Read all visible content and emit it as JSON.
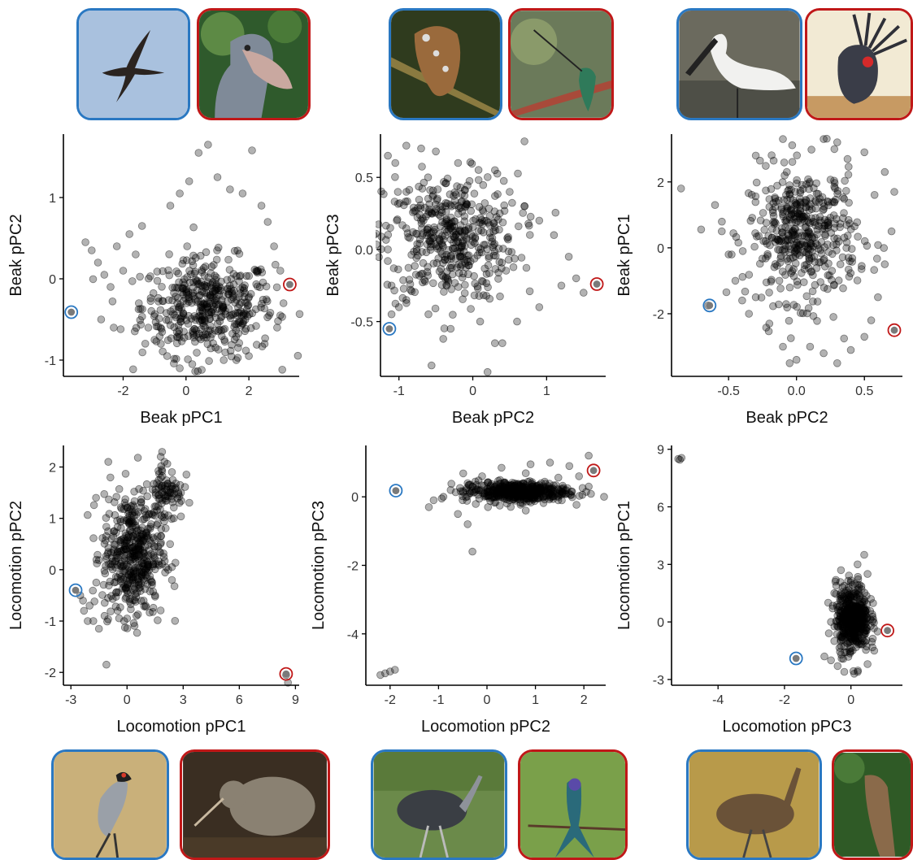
{
  "colors": {
    "low_outlier": "#2a78c2",
    "high_outlier": "#c01818",
    "points": "#000000",
    "axis": "#000000",
    "tick_text": "#333333",
    "label_text": "#111111"
  },
  "photos": {
    "top": [
      {
        "name": "swift-photo",
        "outline": "blue",
        "icon": "bird-in-flight"
      },
      {
        "name": "shoebill-photo",
        "outline": "red",
        "icon": "shoebill"
      },
      {
        "name": "frogmouth-photo",
        "outline": "blue",
        "icon": "perched-bird"
      },
      {
        "name": "sword-billed-hummingbird-photo",
        "outline": "red",
        "icon": "hummingbird"
      },
      {
        "name": "spoonbill-photo",
        "outline": "blue",
        "icon": "spoonbill"
      },
      {
        "name": "palm-cockatoo-photo",
        "outline": "red",
        "icon": "cockatoo"
      }
    ],
    "bottom": [
      {
        "name": "secretarybird-photo",
        "outline": "blue",
        "icon": "secretarybird"
      },
      {
        "name": "kiwi-photo",
        "outline": "red",
        "icon": "kiwi"
      },
      {
        "name": "rhea-photo",
        "outline": "blue",
        "icon": "rhea"
      },
      {
        "name": "hummingbird-photo",
        "outline": "red",
        "icon": "hummingbird"
      },
      {
        "name": "emu-photo",
        "outline": "blue",
        "icon": "emu"
      },
      {
        "name": "perched-bird-photo",
        "outline": "red",
        "icon": "perched-bird"
      }
    ]
  },
  "chart_data": [
    {
      "type": "scatter",
      "xlabel": "Beak pPC1",
      "ylabel": "Beak pPC2",
      "xlim": [
        -3.9,
        3.6
      ],
      "ylim": [
        -1.2,
        1.78
      ],
      "xticks": [
        -2,
        0,
        2
      ],
      "yticks": [
        -1,
        0,
        1
      ],
      "cloud": {
        "cx": 0.7,
        "cy": -0.35,
        "sx": 1.05,
        "sy": 0.3,
        "n": 450
      },
      "scatter_points": [
        [
          -3.0,
          0.35
        ],
        [
          -2.8,
          0.2
        ],
        [
          -2.6,
          0.05
        ],
        [
          -2.4,
          -0.1
        ],
        [
          -2.2,
          0.4
        ],
        [
          -2.0,
          0.1
        ],
        [
          -1.8,
          0.55
        ],
        [
          -1.6,
          0.3
        ],
        [
          -1.4,
          0.65
        ],
        [
          -1.2,
          -0.6
        ],
        [
          -1.0,
          -0.75
        ],
        [
          -0.8,
          -0.8
        ],
        [
          -0.5,
          0.9
        ],
        [
          -0.2,
          1.05
        ],
        [
          0.1,
          1.2
        ],
        [
          0.4,
          1.55
        ],
        [
          0.7,
          1.65
        ],
        [
          1.0,
          1.25
        ],
        [
          1.4,
          1.1
        ],
        [
          1.8,
          1.05
        ],
        [
          2.1,
          1.58
        ],
        [
          2.4,
          0.9
        ],
        [
          2.6,
          0.7
        ],
        [
          2.8,
          0.4
        ],
        [
          3.0,
          0.1
        ],
        [
          3.1,
          -0.3
        ],
        [
          3.0,
          -0.45
        ],
        [
          2.9,
          -0.6
        ],
        [
          2.5,
          -0.8
        ],
        [
          2.0,
          -0.95
        ],
        [
          1.6,
          -1.0
        ],
        [
          0.5,
          -1.12
        ],
        [
          -0.2,
          -1.1
        ],
        [
          0.2,
          -1.05
        ],
        [
          -0.6,
          -0.95
        ],
        [
          -2.7,
          -0.5
        ],
        [
          -2.3,
          -0.6
        ],
        [
          -3.2,
          0.45
        ],
        [
          1.2,
          -1.0
        ],
        [
          -1.5,
          -0.3
        ]
      ],
      "highlights": [
        {
          "outline": "blue",
          "x": -3.65,
          "y": -0.41
        },
        {
          "outline": "red",
          "x": 3.3,
          "y": -0.07
        }
      ]
    },
    {
      "type": "scatter",
      "xlabel": "Beak pPC2",
      "ylabel": "Beak pPC3",
      "xlim": [
        -1.25,
        1.8
      ],
      "ylim": [
        -0.88,
        0.8
      ],
      "xticks": [
        -1,
        0,
        1
      ],
      "yticks": [
        -0.5,
        0.0,
        0.5
      ],
      "yticklabels": [
        "-0.5",
        "0.0",
        "0.5"
      ],
      "cloud": {
        "cx": -0.3,
        "cy": 0.08,
        "sx": 0.45,
        "sy": 0.22,
        "n": 450
      },
      "scatter_points": [
        [
          -1.15,
          0.65
        ],
        [
          -1.05,
          0.6
        ],
        [
          -0.9,
          0.72
        ],
        [
          -0.7,
          0.7
        ],
        [
          -0.5,
          0.68
        ],
        [
          -0.2,
          0.6
        ],
        [
          0.3,
          0.55
        ],
        [
          0.5,
          0.4
        ],
        [
          0.7,
          0.3
        ],
        [
          0.9,
          0.2
        ],
        [
          1.1,
          0.1
        ],
        [
          1.3,
          -0.05
        ],
        [
          1.4,
          -0.2
        ],
        [
          1.5,
          -0.3
        ],
        [
          0.9,
          -0.4
        ],
        [
          0.6,
          -0.5
        ],
        [
          0.4,
          -0.65
        ],
        [
          0.3,
          -0.65
        ],
        [
          0.2,
          -0.85
        ],
        [
          -0.3,
          -0.55
        ],
        [
          -0.6,
          -0.45
        ],
        [
          -0.9,
          -0.35
        ],
        [
          -1.0,
          -0.4
        ],
        [
          -1.1,
          -0.25
        ],
        [
          -1.15,
          0.0
        ],
        [
          -1.1,
          -0.45
        ],
        [
          0.7,
          0.75
        ],
        [
          1.2,
          -0.25
        ],
        [
          -0.4,
          -0.62
        ],
        [
          0.1,
          -0.5
        ]
      ],
      "highlights": [
        {
          "outline": "blue",
          "x": -1.13,
          "y": -0.55
        },
        {
          "outline": "red",
          "x": 1.68,
          "y": -0.24
        }
      ]
    },
    {
      "type": "scatter",
      "xlabel": "Beak pPC2",
      "ylabel": "Beak pPC1",
      "xlim": [
        -0.92,
        0.78
      ],
      "ylim": [
        -3.9,
        3.45
      ],
      "xticks": [
        -0.5,
        0.0,
        0.5
      ],
      "yticks": [
        -2,
        0,
        2
      ],
      "xticklabels": [
        "-0.5",
        "0.0",
        "0.5"
      ],
      "cloud": {
        "cx": 0.05,
        "cy": 0.4,
        "sx": 0.2,
        "sy": 1.0,
        "n": 450
      },
      "scatter_points": [
        [
          -0.85,
          1.8
        ],
        [
          -0.6,
          1.3
        ],
        [
          -0.55,
          0.5
        ],
        [
          -0.5,
          -0.2
        ],
        [
          -0.45,
          -1.0
        ],
        [
          -0.4,
          -1.6
        ],
        [
          -0.35,
          -2.0
        ],
        [
          -0.3,
          -1.5
        ],
        [
          -0.2,
          -2.3
        ],
        [
          -0.1,
          -3.0
        ],
        [
          -0.05,
          -3.5
        ],
        [
          0.0,
          -3.4
        ],
        [
          0.1,
          -3.0
        ],
        [
          0.2,
          -3.2
        ],
        [
          0.3,
          -3.5
        ],
        [
          0.4,
          -3.1
        ],
        [
          0.5,
          -2.7
        ],
        [
          0.55,
          -2.2
        ],
        [
          0.6,
          -1.5
        ],
        [
          0.65,
          -0.5
        ],
        [
          0.7,
          0.5
        ],
        [
          0.72,
          1.7
        ],
        [
          0.65,
          2.3
        ],
        [
          0.5,
          2.9
        ],
        [
          0.2,
          3.3
        ],
        [
          0.3,
          3.2
        ],
        [
          -0.1,
          3.3
        ],
        [
          -0.3,
          2.8
        ],
        [
          0.35,
          -2.75
        ],
        [
          -0.65,
          -1.75
        ]
      ],
      "highlights": [
        {
          "outline": "blue",
          "x": -0.64,
          "y": -1.75
        },
        {
          "outline": "red",
          "x": 0.72,
          "y": -2.5
        }
      ]
    },
    {
      "type": "scatter",
      "xlabel": "Locomotion pPC1",
      "ylabel": "Locomotion pPC2",
      "xlim": [
        -3.4,
        9.2
      ],
      "ylim": [
        -2.25,
        2.42
      ],
      "xticks": [
        -3,
        0,
        3,
        6,
        9
      ],
      "yticks": [
        -2,
        -1,
        0,
        1,
        2
      ],
      "cloud": {
        "cx": 0.3,
        "cy": 0.3,
        "sx": 0.8,
        "sy": 0.6,
        "n": 450
      },
      "scatter_points": [
        [
          -2.5,
          -0.5
        ],
        [
          -2.3,
          -0.8
        ],
        [
          -2.1,
          -1.0
        ],
        [
          -2.0,
          -0.7
        ],
        [
          -1.8,
          -1.0
        ],
        [
          -1.5,
          -1.15
        ],
        [
          -1.2,
          -0.9
        ],
        [
          -1.0,
          2.1
        ],
        [
          -1.1,
          -1.85
        ],
        [
          1.8,
          2.2
        ],
        [
          2.0,
          2.1
        ],
        [
          2.4,
          1.9
        ],
        [
          2.6,
          1.6
        ],
        [
          2.8,
          1.3
        ],
        [
          2.5,
          1.0
        ],
        [
          2.3,
          0.5
        ],
        [
          2.2,
          0.0
        ],
        [
          2.4,
          -0.2
        ],
        [
          1.5,
          -0.5
        ],
        [
          1.0,
          -0.7
        ],
        [
          0.5,
          -0.9
        ],
        [
          0.0,
          -0.95
        ],
        [
          -0.5,
          -0.8
        ],
        [
          8.6,
          -2.2
        ],
        [
          8.5,
          -2.05
        ]
      ],
      "extra_clusters": [
        {
          "cx": 2.1,
          "cy": 1.55,
          "sx": 0.45,
          "sy": 0.3,
          "n": 80
        }
      ],
      "highlights": [
        {
          "outline": "blue",
          "x": -2.75,
          "y": -0.4
        },
        {
          "outline": "red",
          "x": 8.5,
          "y": -2.03
        }
      ]
    },
    {
      "type": "scatter",
      "xlabel": "Locomotion pPC2",
      "ylabel": "Locomotion pPC3",
      "xlim": [
        -2.5,
        2.45
      ],
      "ylim": [
        -5.5,
        1.5
      ],
      "xticks": [
        -2,
        -1,
        0,
        1,
        2
      ],
      "yticks": [
        -4,
        -2,
        0
      ],
      "cloud": {
        "cx": 0.6,
        "cy": 0.15,
        "sx": 0.55,
        "sy": 0.15,
        "n": 450
      },
      "scatter_points": [
        [
          -1.2,
          -0.3
        ],
        [
          -1.1,
          -0.1
        ],
        [
          -0.9,
          0.0
        ],
        [
          -0.6,
          -0.5
        ],
        [
          -0.4,
          -0.8
        ],
        [
          -0.3,
          -1.6
        ],
        [
          -0.4,
          0.4
        ],
        [
          -0.1,
          0.6
        ],
        [
          0.3,
          0.85
        ],
        [
          0.9,
          0.95
        ],
        [
          1.3,
          1.0
        ],
        [
          1.7,
          0.9
        ],
        [
          2.1,
          1.2
        ],
        [
          1.9,
          0.6
        ],
        [
          2.1,
          0.3
        ],
        [
          1.5,
          0.1
        ],
        [
          0.8,
          -0.4
        ],
        [
          -2.2,
          -5.2
        ],
        [
          -2.1,
          -5.15
        ],
        [
          -2.0,
          -5.1
        ],
        [
          -1.9,
          -5.05
        ]
      ],
      "highlights": [
        {
          "outline": "blue",
          "x": -1.88,
          "y": 0.18
        },
        {
          "outline": "red",
          "x": 2.2,
          "y": 0.77
        }
      ]
    },
    {
      "type": "scatter",
      "xlabel": "Locomotion pPC3",
      "ylabel": "Locomotion pPC1",
      "xlim": [
        -5.4,
        1.55
      ],
      "ylim": [
        -3.3,
        9.2
      ],
      "xticks": [
        -4,
        -2,
        0
      ],
      "yticks": [
        -3,
        0,
        3,
        6,
        9
      ],
      "cloud": {
        "cx": 0.05,
        "cy": 0.2,
        "sx": 0.25,
        "sy": 0.9,
        "n": 450
      },
      "scatter_points": [
        [
          -5.2,
          8.5
        ],
        [
          -5.15,
          8.45
        ],
        [
          -5.1,
          8.55
        ],
        [
          -0.8,
          -1.8
        ],
        [
          -0.6,
          -2.0
        ],
        [
          -0.4,
          -2.3
        ],
        [
          -0.2,
          -2.6
        ],
        [
          0.1,
          -2.7
        ],
        [
          0.5,
          -2.2
        ],
        [
          0.7,
          -1.5
        ],
        [
          0.8,
          -0.5
        ],
        [
          0.6,
          1.2
        ],
        [
          0.5,
          2.5
        ],
        [
          0.4,
          3.5
        ],
        [
          0.2,
          3.0
        ],
        [
          -0.3,
          2.7
        ],
        [
          -0.5,
          1.5
        ],
        [
          -0.6,
          0.0
        ],
        [
          -0.5,
          -1.0
        ]
      ],
      "highlights": [
        {
          "outline": "blue",
          "x": -1.65,
          "y": -1.9
        },
        {
          "outline": "red",
          "x": 1.1,
          "y": -0.45
        }
      ]
    }
  ]
}
